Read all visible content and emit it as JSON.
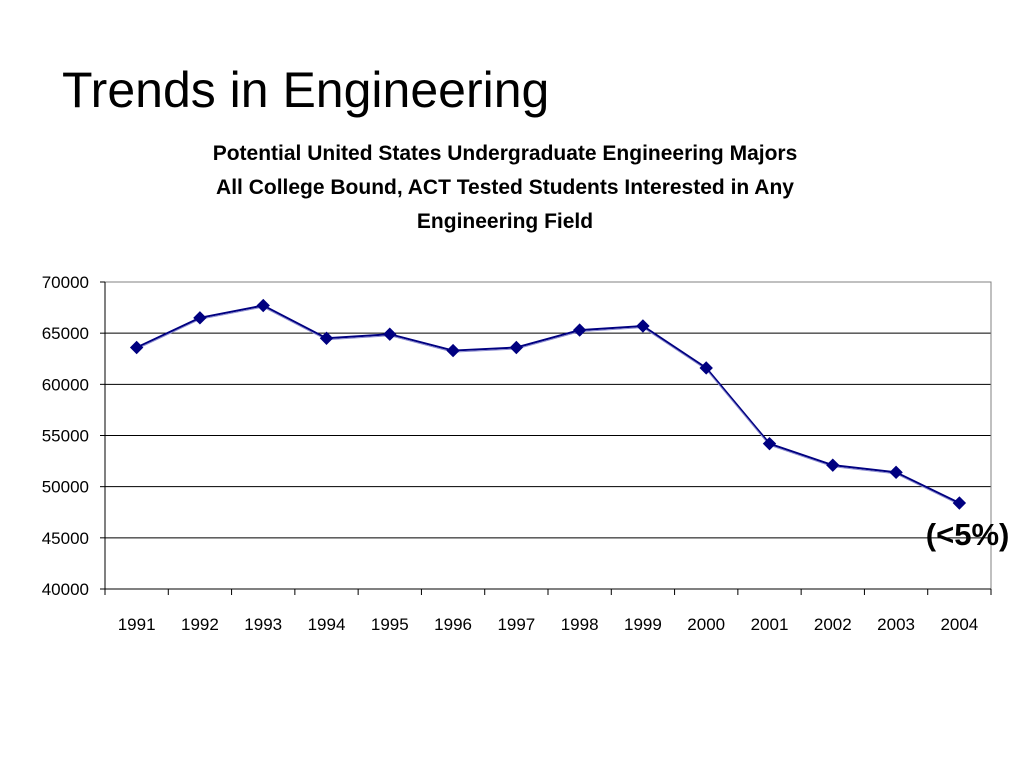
{
  "slide": {
    "title": "Trends in Engineering"
  },
  "chart_data": {
    "type": "line",
    "title_lines": [
      "Potential United States Undergraduate Engineering Majors",
      "All College Bound, ACT Tested Students Interested in Any",
      "Engineering Field"
    ],
    "xlabel": "",
    "ylabel": "",
    "categories": [
      "1991",
      "1992",
      "1993",
      "1994",
      "1995",
      "1996",
      "1997",
      "1998",
      "1999",
      "2000",
      "2001",
      "2002",
      "2003",
      "2004"
    ],
    "series": [
      {
        "values": [
          63600,
          66500,
          67700,
          64500,
          64900,
          63300,
          63600,
          65300,
          65700,
          61600,
          54200,
          52100,
          51400,
          48400
        ],
        "color": "#000080",
        "marker": "diamond"
      }
    ],
    "ylim": [
      40000,
      70000
    ],
    "yticks": [
      40000,
      45000,
      50000,
      55000,
      60000,
      65000,
      70000
    ],
    "grid": "horizontal",
    "legend": "none",
    "annotations": [
      {
        "text": "(<5%)",
        "category": "2004"
      }
    ]
  }
}
